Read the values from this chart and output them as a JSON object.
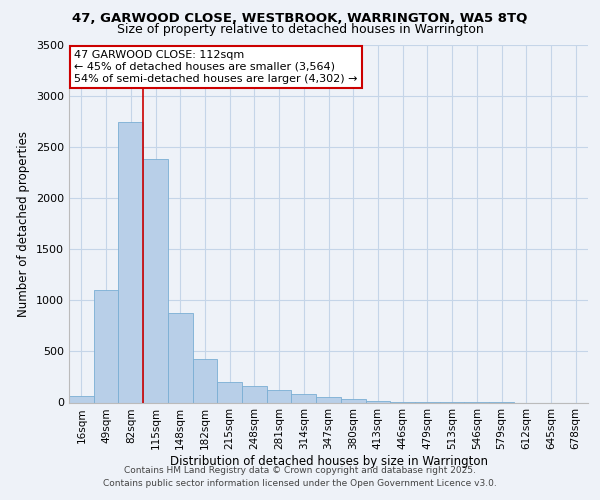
{
  "title_line1": "47, GARWOOD CLOSE, WESTBROOK, WARRINGTON, WA5 8TQ",
  "title_line2": "Size of property relative to detached houses in Warrington",
  "xlabel": "Distribution of detached houses by size in Warrington",
  "ylabel": "Number of detached properties",
  "footer_line1": "Contains HM Land Registry data © Crown copyright and database right 2025.",
  "footer_line2": "Contains public sector information licensed under the Open Government Licence v3.0.",
  "categories": [
    "16sqm",
    "49sqm",
    "82sqm",
    "115sqm",
    "148sqm",
    "182sqm",
    "215sqm",
    "248sqm",
    "281sqm",
    "314sqm",
    "347sqm",
    "380sqm",
    "413sqm",
    "446sqm",
    "479sqm",
    "513sqm",
    "546sqm",
    "579sqm",
    "612sqm",
    "645sqm",
    "678sqm"
  ],
  "values": [
    60,
    1100,
    2750,
    2380,
    880,
    430,
    200,
    160,
    120,
    85,
    50,
    30,
    15,
    8,
    5,
    3,
    2,
    1,
    0,
    0,
    0
  ],
  "bar_color": "#b8cfe8",
  "bar_edge_color": "#7aaed4",
  "grid_color": "#c5d5e8",
  "background_color": "#eef2f8",
  "vline_color": "#cc0000",
  "vline_pos": 2.5,
  "annotation_text": "47 GARWOOD CLOSE: 112sqm\n← 45% of detached houses are smaller (3,564)\n54% of semi-detached houses are larger (4,302) →",
  "annotation_box_facecolor": "#ffffff",
  "annotation_box_edgecolor": "#cc0000",
  "ylim": [
    0,
    3500
  ],
  "yticks": [
    0,
    500,
    1000,
    1500,
    2000,
    2500,
    3000,
    3500
  ],
  "title1_fontsize": 9.5,
  "title2_fontsize": 9.0,
  "ylabel_fontsize": 8.5,
  "xlabel_fontsize": 8.5,
  "tick_fontsize": 8.0,
  "xtick_fontsize": 7.5,
  "footer_fontsize": 6.5,
  "annot_fontsize": 8.0
}
